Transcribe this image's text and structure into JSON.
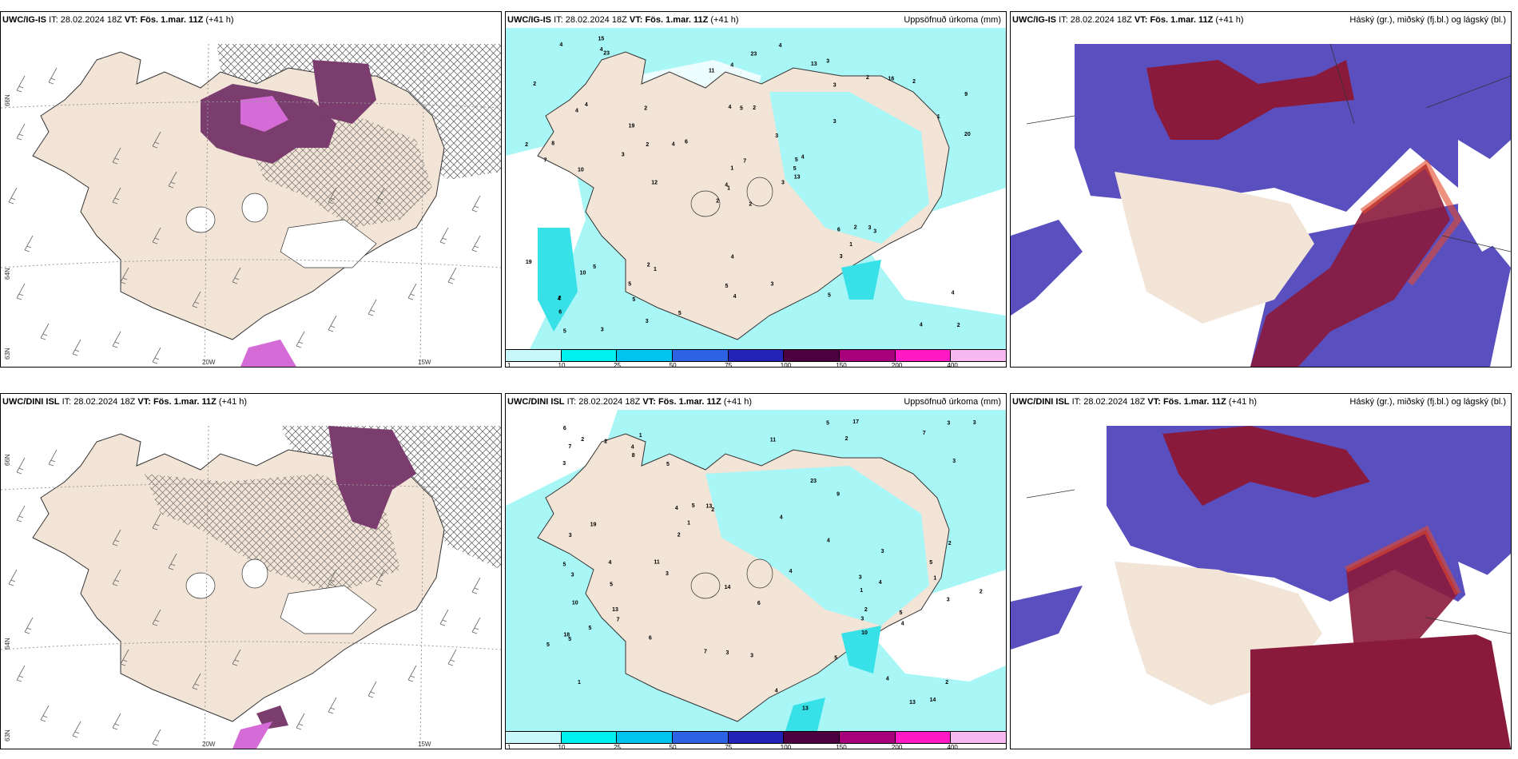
{
  "rows": [
    {
      "model": "UWC/IG-IS",
      "it_label": "IT:",
      "it_value": "28.02.2024 18Z",
      "vt_label": "VT:",
      "vt_value": "Fös. 1.mar. 11Z",
      "lead": "(+41 h)",
      "precip_numbers": [
        "2",
        "4",
        "1",
        "2",
        "5",
        "1",
        "3",
        "2",
        "3",
        "3",
        "23",
        "2",
        "10",
        "9",
        "2",
        "3",
        "3",
        "4",
        "3",
        "5",
        "6",
        "6",
        "5",
        "5",
        "4",
        "3",
        "4",
        "4",
        "7",
        "6",
        "20",
        "4",
        "5",
        "1",
        "2",
        "2",
        "2",
        "4",
        "4",
        "3",
        "4",
        "4",
        "3",
        "3",
        "3",
        "2",
        "5",
        "5",
        "4",
        "13",
        "10",
        "1",
        "2",
        "1",
        "5",
        "5",
        "4",
        "4",
        "3",
        "2",
        "23",
        "12",
        "8",
        "19",
        "16",
        "15",
        "13",
        "11",
        "7",
        "19",
        "4",
        "5",
        "2",
        "2",
        "4"
      ]
    },
    {
      "model": "UWC/DINI ISL",
      "it_label": "IT:",
      "it_value": "28.02.2024 18Z",
      "vt_label": "VT:",
      "vt_value": "Fös. 1.mar. 11Z",
      "lead": "(+41 h)",
      "precip_numbers": [
        "1",
        "1",
        "1",
        "1",
        "2",
        "4",
        "5",
        "2",
        "4",
        "13",
        "3",
        "5",
        "7",
        "2",
        "7",
        "2",
        "6",
        "4",
        "13",
        "7",
        "3",
        "7",
        "2",
        "3",
        "5",
        "4",
        "2",
        "3",
        "8",
        "3",
        "4",
        "5",
        "1",
        "3",
        "5",
        "4",
        "3",
        "4",
        "3",
        "5",
        "3",
        "17",
        "14",
        "3",
        "5",
        "6",
        "5",
        "2",
        "4",
        "3",
        "2",
        "5",
        "3",
        "3",
        "10",
        "13",
        "9",
        "6",
        "5",
        "2",
        "4",
        "5",
        "4",
        "10",
        "11",
        "19",
        "14",
        "13",
        "11",
        "18",
        "23"
      ]
    }
  ],
  "precip_title": "Uppsöfnuð úrkoma (mm)",
  "cloud_title": "Háský (gr.), miðský (fj.bl.) og lágský (bl.)",
  "colorbar": {
    "ticks": [
      "1",
      "10",
      "25",
      "50",
      "75",
      "100",
      "150",
      "200",
      "400"
    ],
    "colors": [
      "#c9f8fb",
      "#00efef",
      "#00c4ef",
      "#2d62e2",
      "#2323b8",
      "#4d0040",
      "#a6007d",
      "#ff1ac6",
      "#f7b9f0"
    ]
  },
  "colors": {
    "land": "#f2e4d6",
    "sea": "#ffffff",
    "precip_light": "#a8f6f6",
    "precip_mid": "#38e0e8",
    "cloud_blue": "#5a4fbf",
    "cloud_red": "#8a1a3c",
    "precip_purple": "#7b3d6d",
    "magenta": "#d56bd6"
  },
  "axis": {
    "lat_top": "66N",
    "lat_bottom": "64N",
    "lat_edge": "63N",
    "lon_left": "20W",
    "lon_right": "15W"
  }
}
